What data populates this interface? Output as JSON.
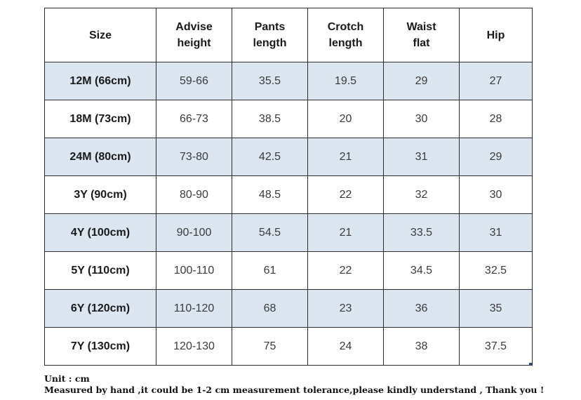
{
  "table": {
    "headers": [
      [
        "Size"
      ],
      [
        "Advise",
        "height"
      ],
      [
        "Pants",
        "length"
      ],
      [
        "Crotch",
        "length"
      ],
      [
        "Waist",
        "flat"
      ],
      [
        "Hip"
      ]
    ],
    "rows": [
      [
        "12M (66cm)",
        "59-66",
        "35.5",
        "19.5",
        "29",
        "27"
      ],
      [
        "18M (73cm)",
        "66-73",
        "38.5",
        "20",
        "30",
        "28"
      ],
      [
        "24M (80cm)",
        "73-80",
        "42.5",
        "21",
        "31",
        "29"
      ],
      [
        "3Y (90cm)",
        "80-90",
        "48.5",
        "22",
        "32",
        "30"
      ],
      [
        "4Y (100cm)",
        "90-100",
        "54.5",
        "21",
        "33.5",
        "31"
      ],
      [
        "5Y (110cm)",
        "100-110",
        "61",
        "22",
        "34.5",
        "32.5"
      ],
      [
        "6Y (120cm)",
        "110-120",
        "68",
        "23",
        "36",
        "35"
      ],
      [
        "7Y (130cm)",
        "120-130",
        "75",
        "24",
        "38",
        "37.5"
      ]
    ]
  },
  "notes": {
    "unit": "Unit : cm",
    "tolerance": "Measured by hand ,it could be 1-2 cm measurement tolerance,please kindly understand , Thank you !"
  },
  "colors": {
    "shaded_row": "#dce6f1",
    "border": "#2b2b2b"
  }
}
